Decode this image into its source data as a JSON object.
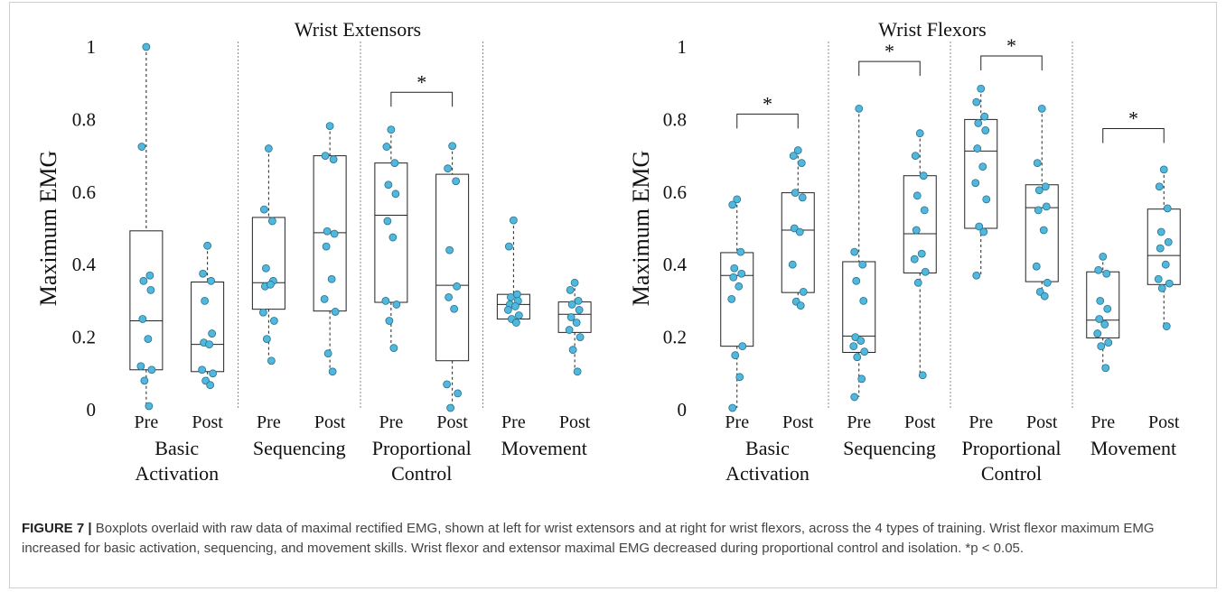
{
  "chart_data": [
    {
      "type": "boxplot",
      "title": "Wrist Extensors",
      "ylabel": "Maximum EMG",
      "ylim": [
        0,
        1
      ],
      "yticks": [
        "0",
        "0.2",
        "0.4",
        "0.6",
        "0.8",
        "1"
      ],
      "groups": [
        {
          "label_line1": "Basic",
          "label_line2": "Activation"
        },
        {
          "label_line1": "Sequencing",
          "label_line2": ""
        },
        {
          "label_line1": "Proportional",
          "label_line2": "Control"
        },
        {
          "label_line1": "Movement",
          "label_line2": ""
        }
      ],
      "boxes": [
        {
          "group": 0,
          "label": "Pre",
          "min": 0.01,
          "q1": 0.11,
          "median": 0.245,
          "q3": 0.493,
          "max": 1.0,
          "points": [
            1.0,
            0.725,
            0.37,
            0.355,
            0.33,
            0.25,
            0.195,
            0.12,
            0.11,
            0.08,
            0.01
          ]
        },
        {
          "group": 0,
          "label": "Post",
          "min": 0.065,
          "q1": 0.105,
          "median": 0.18,
          "q3": 0.352,
          "max": 0.452,
          "points": [
            0.452,
            0.375,
            0.355,
            0.3,
            0.21,
            0.185,
            0.18,
            0.11,
            0.1,
            0.08,
            0.068
          ]
        },
        {
          "group": 1,
          "label": "Pre",
          "min": 0.135,
          "q1": 0.277,
          "median": 0.35,
          "q3": 0.53,
          "max": 0.72,
          "points": [
            0.72,
            0.552,
            0.52,
            0.39,
            0.355,
            0.34,
            0.345,
            0.268,
            0.245,
            0.195,
            0.135
          ]
        },
        {
          "group": 1,
          "label": "Post",
          "min": 0.105,
          "q1": 0.272,
          "median": 0.488,
          "q3": 0.7,
          "max": 0.782,
          "points": [
            0.782,
            0.7,
            0.69,
            0.492,
            0.485,
            0.45,
            0.36,
            0.305,
            0.27,
            0.155,
            0.105
          ]
        },
        {
          "group": 2,
          "label": "Pre",
          "min": 0.17,
          "q1": 0.296,
          "median": 0.536,
          "q3": 0.68,
          "max": 0.772,
          "points": [
            0.772,
            0.725,
            0.68,
            0.62,
            0.595,
            0.52,
            0.475,
            0.3,
            0.29,
            0.245,
            0.17
          ]
        },
        {
          "group": 2,
          "label": "Post",
          "min": 0.005,
          "q1": 0.135,
          "median": 0.343,
          "q3": 0.649,
          "max": 0.727,
          "points": [
            0.727,
            0.665,
            0.63,
            0.44,
            0.34,
            0.31,
            0.278,
            0.07,
            0.045,
            0.005
          ]
        },
        {
          "group": 3,
          "label": "Pre",
          "min": 0.235,
          "q1": 0.25,
          "median": 0.29,
          "q3": 0.318,
          "max": 0.522,
          "points": [
            0.522,
            0.45,
            0.318,
            0.31,
            0.3,
            0.29,
            0.285,
            0.275,
            0.26,
            0.25,
            0.24
          ]
        },
        {
          "group": 3,
          "label": "Post",
          "min": 0.105,
          "q1": 0.213,
          "median": 0.263,
          "q3": 0.297,
          "max": 0.35,
          "points": [
            0.35,
            0.33,
            0.3,
            0.29,
            0.275,
            0.255,
            0.24,
            0.22,
            0.2,
            0.165,
            0.105
          ]
        }
      ],
      "significance": [
        {
          "group": 2,
          "y": 0.875,
          "label": "*"
        }
      ]
    },
    {
      "type": "boxplot",
      "title": "Wrist Flexors",
      "ylabel": "Maximum EMG",
      "ylim": [
        0,
        1
      ],
      "yticks": [
        "0",
        "0.2",
        "0.4",
        "0.6",
        "0.8",
        "1"
      ],
      "groups": [
        {
          "label_line1": "Basic",
          "label_line2": "Activation"
        },
        {
          "label_line1": "Sequencing",
          "label_line2": ""
        },
        {
          "label_line1": "Proportional",
          "label_line2": "Control"
        },
        {
          "label_line1": "Movement",
          "label_line2": ""
        }
      ],
      "boxes": [
        {
          "group": 0,
          "label": "Pre",
          "min": 0.005,
          "q1": 0.175,
          "median": 0.37,
          "q3": 0.433,
          "max": 0.58,
          "points": [
            0.58,
            0.565,
            0.435,
            0.39,
            0.375,
            0.365,
            0.34,
            0.305,
            0.175,
            0.15,
            0.09,
            0.005
          ]
        },
        {
          "group": 0,
          "label": "Post",
          "min": 0.287,
          "q1": 0.323,
          "median": 0.495,
          "q3": 0.598,
          "max": 0.715,
          "points": [
            0.715,
            0.7,
            0.68,
            0.598,
            0.585,
            0.5,
            0.49,
            0.4,
            0.325,
            0.298,
            0.287
          ]
        },
        {
          "group": 1,
          "label": "Pre",
          "min": 0.035,
          "q1": 0.158,
          "median": 0.203,
          "q3": 0.408,
          "max": 0.83,
          "points": [
            0.83,
            0.435,
            0.4,
            0.355,
            0.3,
            0.2,
            0.19,
            0.175,
            0.16,
            0.145,
            0.085,
            0.035
          ]
        },
        {
          "group": 1,
          "label": "Post",
          "min": 0.095,
          "q1": 0.377,
          "median": 0.485,
          "q3": 0.645,
          "max": 0.762,
          "points": [
            0.762,
            0.7,
            0.645,
            0.59,
            0.55,
            0.495,
            0.43,
            0.415,
            0.38,
            0.35,
            0.095
          ]
        },
        {
          "group": 2,
          "label": "Pre",
          "min": 0.37,
          "q1": 0.5,
          "median": 0.713,
          "q3": 0.8,
          "max": 0.885,
          "points": [
            0.885,
            0.848,
            0.808,
            0.79,
            0.77,
            0.72,
            0.67,
            0.625,
            0.58,
            0.505,
            0.49,
            0.37
          ]
        },
        {
          "group": 2,
          "label": "Post",
          "min": 0.313,
          "q1": 0.353,
          "median": 0.557,
          "q3": 0.62,
          "max": 0.83,
          "points": [
            0.83,
            0.68,
            0.615,
            0.605,
            0.56,
            0.55,
            0.495,
            0.395,
            0.35,
            0.325,
            0.313
          ]
        },
        {
          "group": 3,
          "label": "Pre",
          "min": 0.115,
          "q1": 0.198,
          "median": 0.247,
          "q3": 0.38,
          "max": 0.422,
          "points": [
            0.422,
            0.385,
            0.375,
            0.3,
            0.278,
            0.25,
            0.235,
            0.21,
            0.185,
            0.175,
            0.115
          ]
        },
        {
          "group": 3,
          "label": "Post",
          "min": 0.23,
          "q1": 0.345,
          "median": 0.425,
          "q3": 0.553,
          "max": 0.662,
          "points": [
            0.662,
            0.615,
            0.555,
            0.49,
            0.462,
            0.445,
            0.4,
            0.36,
            0.348,
            0.335,
            0.23
          ]
        }
      ],
      "significance": [
        {
          "group": 0,
          "y": 0.815,
          "label": "*"
        },
        {
          "group": 1,
          "y": 0.96,
          "label": "*"
        },
        {
          "group": 2,
          "y": 0.975,
          "label": "*"
        },
        {
          "group": 3,
          "y": 0.775,
          "label": "*"
        }
      ]
    }
  ],
  "caption": {
    "figure_label": "FIGURE 7 |",
    "text": "Boxplots overlaid with raw data of maximal rectified EMG, shown at left for wrist extensors and at right for wrist flexors, across the 4 types of training. Wrist flexor maximum EMG increased for basic activation, sequencing, and movement skills. Wrist flexor and extensor maximal EMG decreased during proportional control and isolation. *p < 0.05."
  },
  "colors": {
    "point_fill": "#4fb8dc",
    "point_stroke": "#2a6f8c",
    "box_stroke": "#222222",
    "divider": "#8a8a8a"
  }
}
